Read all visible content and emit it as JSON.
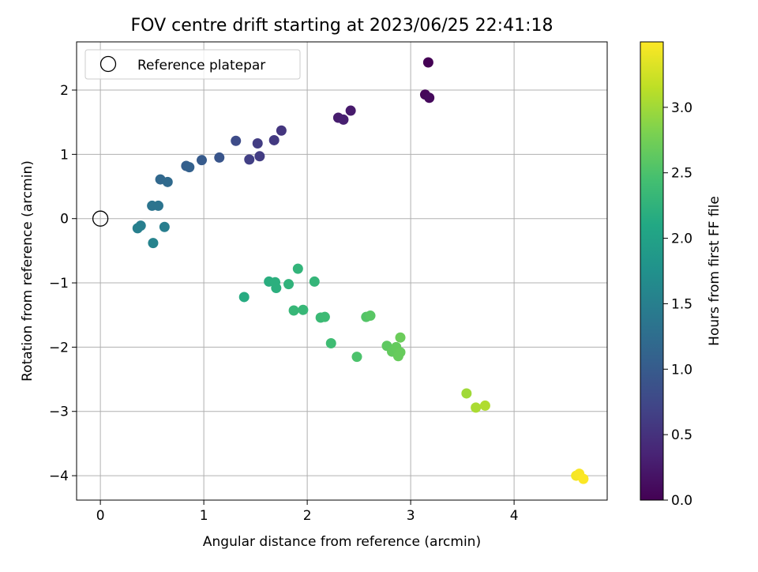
{
  "chart_data": {
    "type": "scatter",
    "title": "FOV centre drift starting at 2023/06/25 22:41:18",
    "xlabel": "Angular distance from reference (arcmin)",
    "ylabel": "Rotation from reference (arcmin)",
    "xlim": [
      -0.23,
      4.9
    ],
    "ylim": [
      -4.38,
      2.75
    ],
    "x_ticks": [
      0,
      1,
      2,
      3,
      4
    ],
    "y_ticks": [
      -4,
      -3,
      -2,
      -1,
      0,
      1,
      2
    ],
    "x_tick_labels": [
      "0",
      "1",
      "2",
      "3",
      "4"
    ],
    "y_tick_labels": [
      "−4",
      "−3",
      "−2",
      "−1",
      "0",
      "1",
      "2"
    ],
    "grid": true,
    "legend": {
      "position": "top-left",
      "entries": [
        {
          "label": "Reference platepar",
          "marker": "open-circle"
        }
      ]
    },
    "reference_point": {
      "x": 0,
      "y": 0
    },
    "colorbar": {
      "label": "Hours from first FF file",
      "colormap": "viridis",
      "range": [
        0,
        3.5
      ],
      "ticks": [
        0,
        0.5,
        1,
        1.5,
        2,
        2.5,
        3
      ],
      "tick_labels": [
        "0.0",
        "0.5",
        "1.0",
        "1.5",
        "2.0",
        "2.5",
        "3.0"
      ]
    },
    "points": [
      {
        "x": 3.17,
        "y": 2.43,
        "h": 0.0
      },
      {
        "x": 3.14,
        "y": 1.93,
        "h": 0.05
      },
      {
        "x": 3.18,
        "y": 1.88,
        "h": 0.08
      },
      {
        "x": 2.42,
        "y": 1.68,
        "h": 0.25
      },
      {
        "x": 2.3,
        "y": 1.57,
        "h": 0.28
      },
      {
        "x": 2.35,
        "y": 1.54,
        "h": 0.3
      },
      {
        "x": 1.75,
        "y": 1.37,
        "h": 0.55
      },
      {
        "x": 1.68,
        "y": 1.22,
        "h": 0.58
      },
      {
        "x": 1.52,
        "y": 1.17,
        "h": 0.62
      },
      {
        "x": 1.54,
        "y": 0.97,
        "h": 0.62
      },
      {
        "x": 1.44,
        "y": 0.92,
        "h": 0.66
      },
      {
        "x": 1.31,
        "y": 1.21,
        "h": 0.8
      },
      {
        "x": 1.15,
        "y": 0.95,
        "h": 0.92
      },
      {
        "x": 0.98,
        "y": 0.91,
        "h": 1.0
      },
      {
        "x": 0.83,
        "y": 0.82,
        "h": 1.05
      },
      {
        "x": 0.86,
        "y": 0.8,
        "h": 1.08
      },
      {
        "x": 0.58,
        "y": 0.61,
        "h": 1.18
      },
      {
        "x": 0.65,
        "y": 0.57,
        "h": 1.2
      },
      {
        "x": 0.5,
        "y": 0.2,
        "h": 1.35
      },
      {
        "x": 0.56,
        "y": 0.2,
        "h": 1.35
      },
      {
        "x": 0.39,
        "y": -0.11,
        "h": 1.48
      },
      {
        "x": 0.36,
        "y": -0.15,
        "h": 1.5
      },
      {
        "x": 0.62,
        "y": -0.13,
        "h": 1.48
      },
      {
        "x": 0.51,
        "y": -0.38,
        "h": 1.55
      },
      {
        "x": 1.39,
        "y": -1.22,
        "h": 2.15
      },
      {
        "x": 1.63,
        "y": -0.98,
        "h": 2.18
      },
      {
        "x": 1.69,
        "y": -0.99,
        "h": 2.2
      },
      {
        "x": 1.7,
        "y": -1.08,
        "h": 2.2
      },
      {
        "x": 1.82,
        "y": -1.02,
        "h": 2.25
      },
      {
        "x": 1.91,
        "y": -0.78,
        "h": 2.28
      },
      {
        "x": 2.07,
        "y": -0.98,
        "h": 2.3
      },
      {
        "x": 1.87,
        "y": -1.43,
        "h": 2.32
      },
      {
        "x": 1.96,
        "y": -1.42,
        "h": 2.33
      },
      {
        "x": 2.13,
        "y": -1.54,
        "h": 2.36
      },
      {
        "x": 2.17,
        "y": -1.53,
        "h": 2.38
      },
      {
        "x": 2.23,
        "y": -1.94,
        "h": 2.4
      },
      {
        "x": 2.48,
        "y": -2.15,
        "h": 2.5
      },
      {
        "x": 2.57,
        "y": -1.53,
        "h": 2.55
      },
      {
        "x": 2.61,
        "y": -1.51,
        "h": 2.58
      },
      {
        "x": 2.77,
        "y": -1.98,
        "h": 2.62
      },
      {
        "x": 2.82,
        "y": -2.07,
        "h": 2.65
      },
      {
        "x": 2.86,
        "y": -2.0,
        "h": 2.66
      },
      {
        "x": 2.9,
        "y": -2.08,
        "h": 2.68
      },
      {
        "x": 2.88,
        "y": -2.14,
        "h": 2.68
      },
      {
        "x": 2.9,
        "y": -1.85,
        "h": 2.7
      },
      {
        "x": 3.54,
        "y": -2.72,
        "h": 3.0
      },
      {
        "x": 3.63,
        "y": -2.94,
        "h": 3.05
      },
      {
        "x": 3.72,
        "y": -2.91,
        "h": 3.08
      },
      {
        "x": 4.6,
        "y": -4.0,
        "h": 3.45
      },
      {
        "x": 4.63,
        "y": -3.97,
        "h": 3.47
      },
      {
        "x": 4.67,
        "y": -4.05,
        "h": 3.49
      }
    ]
  }
}
